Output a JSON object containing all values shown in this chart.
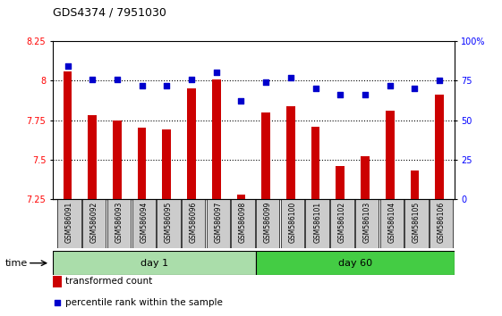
{
  "title": "GDS4374 / 7951030",
  "samples": [
    "GSM586091",
    "GSM586092",
    "GSM586093",
    "GSM586094",
    "GSM586095",
    "GSM586096",
    "GSM586097",
    "GSM586098",
    "GSM586099",
    "GSM586100",
    "GSM586101",
    "GSM586102",
    "GSM586103",
    "GSM586104",
    "GSM586105",
    "GSM586106"
  ],
  "red_values": [
    8.06,
    7.78,
    7.75,
    7.7,
    7.69,
    7.95,
    8.01,
    7.28,
    7.8,
    7.84,
    7.71,
    7.46,
    7.52,
    7.81,
    7.43,
    7.91
  ],
  "blue_values": [
    84,
    76,
    76,
    72,
    72,
    76,
    80,
    62,
    74,
    77,
    70,
    66,
    66,
    72,
    70,
    75
  ],
  "day1_count": 8,
  "day60_count": 8,
  "ylim_left": [
    7.25,
    8.25
  ],
  "ylim_right": [
    0,
    100
  ],
  "yticks_left": [
    7.25,
    7.5,
    7.75,
    8.0,
    8.25
  ],
  "yticks_right": [
    0,
    25,
    50,
    75,
    100
  ],
  "ytick_labels_left": [
    "7.25",
    "7.5",
    "7.75",
    "8",
    "8.25"
  ],
  "ytick_labels_right": [
    "0",
    "25",
    "50",
    "75",
    "100%"
  ],
  "bar_color": "#cc0000",
  "dot_color": "#0000cc",
  "day1_label": "day 1",
  "day60_label": "day 60",
  "day1_color": "#aaddaa",
  "day60_color": "#44cc44",
  "legend_bar_label": "transformed count",
  "legend_dot_label": "percentile rank within the sample",
  "time_label": "time",
  "bar_bottom": 7.25,
  "grid_lines": [
    7.5,
    7.75,
    8.0
  ],
  "xtick_bg_color": "#cccccc",
  "plot_bg_color": "#ffffff"
}
